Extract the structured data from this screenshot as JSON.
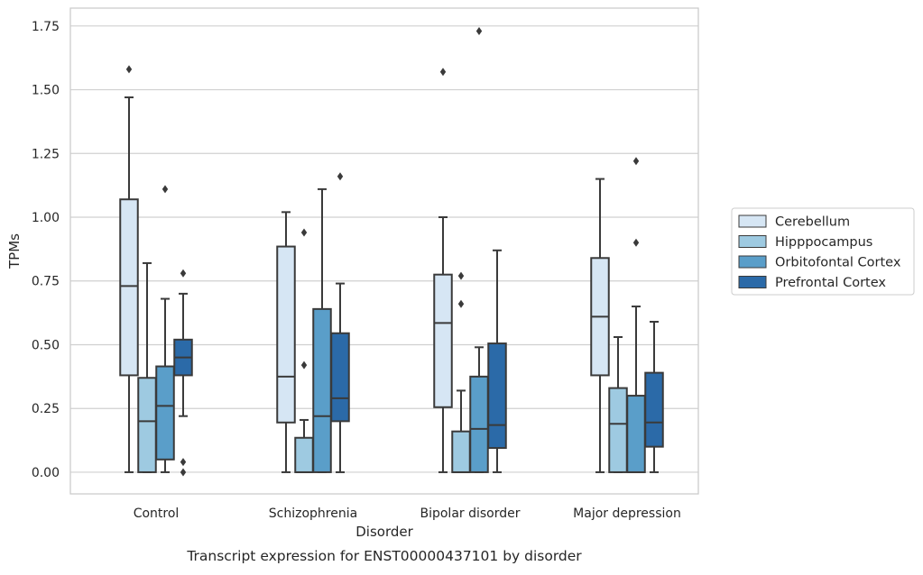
{
  "chart_data": {
    "type": "box",
    "xlabel": "Disorder",
    "ylabel": "TPMs",
    "caption": "Transcript expression for ENST00000437101 by disorder",
    "ylim": [
      -0.085,
      1.82
    ],
    "yticks": [
      "0.00",
      "0.25",
      "0.50",
      "0.75",
      "1.00",
      "1.25",
      "1.50",
      "1.75"
    ],
    "ytick_values": [
      0,
      0.25,
      0.5,
      0.75,
      1.0,
      1.25,
      1.5,
      1.75
    ],
    "grid": true,
    "legend_position": "right",
    "categories": [
      "Control",
      "Schizophrenia",
      "Bipolar disorder",
      "Major depression"
    ],
    "series": [
      {
        "name": "Cerebellum",
        "color": "#d6e6f4",
        "boxes": [
          {
            "whisker_low": 0.0,
            "q1": 0.38,
            "median": 0.73,
            "q3": 1.07,
            "whisker_high": 1.47,
            "outliers": [
              1.58
            ]
          },
          {
            "whisker_low": 0.0,
            "q1": 0.195,
            "median": 0.375,
            "q3": 0.885,
            "whisker_high": 1.02,
            "outliers": []
          },
          {
            "whisker_low": 0.0,
            "q1": 0.255,
            "median": 0.585,
            "q3": 0.775,
            "whisker_high": 1.0,
            "outliers": [
              1.57
            ]
          },
          {
            "whisker_low": 0.0,
            "q1": 0.38,
            "median": 0.61,
            "q3": 0.84,
            "whisker_high": 1.15,
            "outliers": []
          }
        ]
      },
      {
        "name": "Hipppocampus",
        "color": "#9ecae1",
        "boxes": [
          {
            "whisker_low": 0.0,
            "q1": 0.0,
            "median": 0.2,
            "q3": 0.37,
            "whisker_high": 0.82,
            "outliers": []
          },
          {
            "whisker_low": 0.0,
            "q1": 0.0,
            "median": 0.0,
            "q3": 0.135,
            "whisker_high": 0.205,
            "outliers": [
              0.42,
              0.94
            ]
          },
          {
            "whisker_low": 0.0,
            "q1": 0.0,
            "median": 0.0,
            "q3": 0.16,
            "whisker_high": 0.32,
            "outliers": [
              0.66,
              0.77
            ]
          },
          {
            "whisker_low": 0.0,
            "q1": 0.0,
            "median": 0.19,
            "q3": 0.33,
            "whisker_high": 0.53,
            "outliers": []
          }
        ]
      },
      {
        "name": "Orbitofontal Cortex",
        "color": "#5a9ec9",
        "boxes": [
          {
            "whisker_low": 0.0,
            "q1": 0.05,
            "median": 0.26,
            "q3": 0.415,
            "whisker_high": 0.68,
            "outliers": [
              1.11
            ]
          },
          {
            "whisker_low": 0.0,
            "q1": 0.0,
            "median": 0.22,
            "q3": 0.64,
            "whisker_high": 1.11,
            "outliers": []
          },
          {
            "whisker_low": 0.0,
            "q1": 0.0,
            "median": 0.17,
            "q3": 0.375,
            "whisker_high": 0.49,
            "outliers": [
              1.73
            ]
          },
          {
            "whisker_low": 0.0,
            "q1": 0.0,
            "median": 0.0,
            "q3": 0.3,
            "whisker_high": 0.65,
            "outliers": [
              0.9,
              1.22
            ]
          }
        ]
      },
      {
        "name": "Prefrontal Cortex",
        "color": "#2b6aa8",
        "boxes": [
          {
            "whisker_low": 0.22,
            "q1": 0.38,
            "median": 0.45,
            "q3": 0.52,
            "whisker_high": 0.7,
            "outliers": [
              0.0,
              0.04,
              0.78
            ]
          },
          {
            "whisker_low": 0.0,
            "q1": 0.2,
            "median": 0.29,
            "q3": 0.545,
            "whisker_high": 0.74,
            "outliers": [
              1.16
            ]
          },
          {
            "whisker_low": 0.0,
            "q1": 0.095,
            "median": 0.185,
            "q3": 0.505,
            "whisker_high": 0.87,
            "outliers": []
          },
          {
            "whisker_low": 0.0,
            "q1": 0.1,
            "median": 0.195,
            "q3": 0.39,
            "whisker_high": 0.59,
            "outliers": []
          }
        ]
      }
    ]
  }
}
